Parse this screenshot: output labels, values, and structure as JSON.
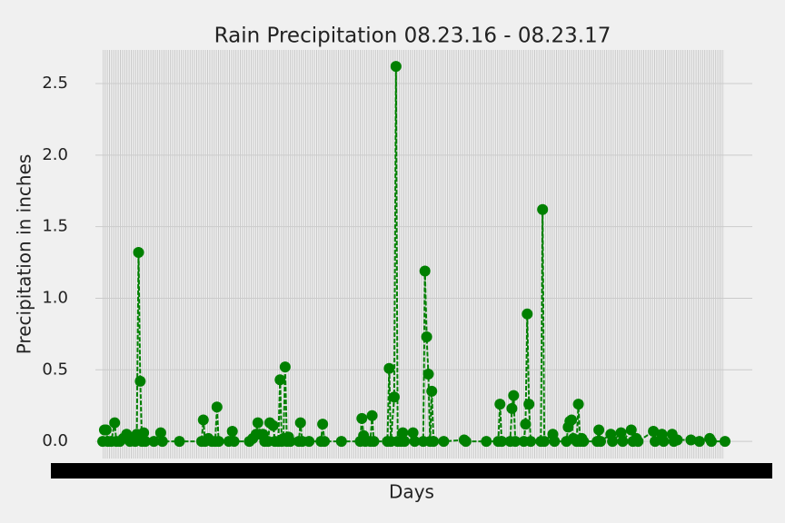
{
  "chart_data": {
    "type": "line",
    "title": "Rain Precipitation 08.23.16 - 08.23.17",
    "x_label": "Days",
    "y_label": "Precipitation in inches",
    "x": [
      0,
      1,
      2,
      3,
      5,
      7,
      8,
      10,
      12,
      14,
      16,
      17,
      19,
      20,
      21,
      22,
      23,
      24,
      25,
      30,
      34,
      35,
      45,
      58,
      59,
      60,
      62,
      64,
      66,
      67,
      68,
      74,
      76,
      77,
      86,
      88,
      90,
      91,
      92,
      94,
      95,
      97,
      98,
      100,
      101,
      103,
      104,
      105,
      106,
      107,
      108,
      109,
      110,
      115,
      116,
      117,
      121,
      128,
      129,
      130,
      140,
      151,
      152,
      153,
      154,
      157,
      158,
      159,
      167,
      168,
      169,
      171,
      172,
      173,
      175,
      176,
      177,
      182,
      183,
      188,
      189,
      190,
      191,
      192,
      193,
      194,
      200,
      212,
      213,
      225,
      232,
      233,
      234,
      239,
      240,
      241,
      242,
      247,
      248,
      249,
      250,
      251,
      257,
      258,
      259,
      264,
      265,
      272,
      273,
      274,
      275,
      276,
      278,
      279,
      280,
      281,
      282,
      290,
      291,
      292,
      298,
      299,
      304,
      305,
      310,
      311,
      313,
      314,
      323,
      324,
      328,
      329,
      334,
      335,
      337,
      345,
      350,
      356,
      357,
      365
    ],
    "series": [
      {
        "name": "precipitation",
        "color": "#008000",
        "values": [
          0,
          0.08,
          0.08,
          0,
          0,
          0.13,
          0,
          0,
          0.02,
          0.05,
          0,
          0.02,
          0,
          0.05,
          1.32,
          0.42,
          0,
          0.06,
          0,
          0,
          0.06,
          0,
          0,
          0,
          0.15,
          0,
          0.02,
          0,
          0,
          0.24,
          0,
          0,
          0.07,
          0,
          0,
          0.02,
          0.05,
          0.13,
          0.05,
          0.05,
          0,
          0,
          0.13,
          0.11,
          0,
          0,
          0.43,
          0,
          0.02,
          0.52,
          0,
          0.03,
          0,
          0,
          0.13,
          0,
          0,
          0,
          0.12,
          0,
          0,
          0,
          0.16,
          0.04,
          0,
          0,
          0.18,
          0,
          0,
          0.51,
          0,
          0.31,
          2.62,
          0,
          0,
          0.06,
          0,
          0.06,
          0,
          0,
          1.19,
          0.73,
          0.47,
          0,
          0.35,
          0,
          0,
          0.01,
          0,
          0,
          0,
          0.26,
          0,
          0,
          0.23,
          0.32,
          0,
          0,
          0.12,
          0.89,
          0.26,
          0,
          0,
          1.62,
          0,
          0.05,
          0,
          0,
          0.1,
          0.14,
          0.15,
          0.02,
          0,
          0.26,
          0,
          0.02,
          0,
          0,
          0.08,
          0,
          0.05,
          0,
          0.06,
          0,
          0.08,
          0,
          0.02,
          0,
          0.07,
          0,
          0.05,
          0,
          0.05,
          0,
          0.01,
          0.01,
          0,
          0.02,
          0,
          0
        ]
      }
    ],
    "xlim": [
      -4.3,
      381
    ],
    "ylim": [
      -0.12,
      2.735
    ],
    "yticks": [
      {
        "value": 0,
        "label": "0.0"
      },
      0.5,
      {
        "value": 1,
        "label": "1.0"
      },
      1.5,
      {
        "value": 2,
        "label": "2.0"
      },
      2.5
    ],
    "grid": true
  }
}
